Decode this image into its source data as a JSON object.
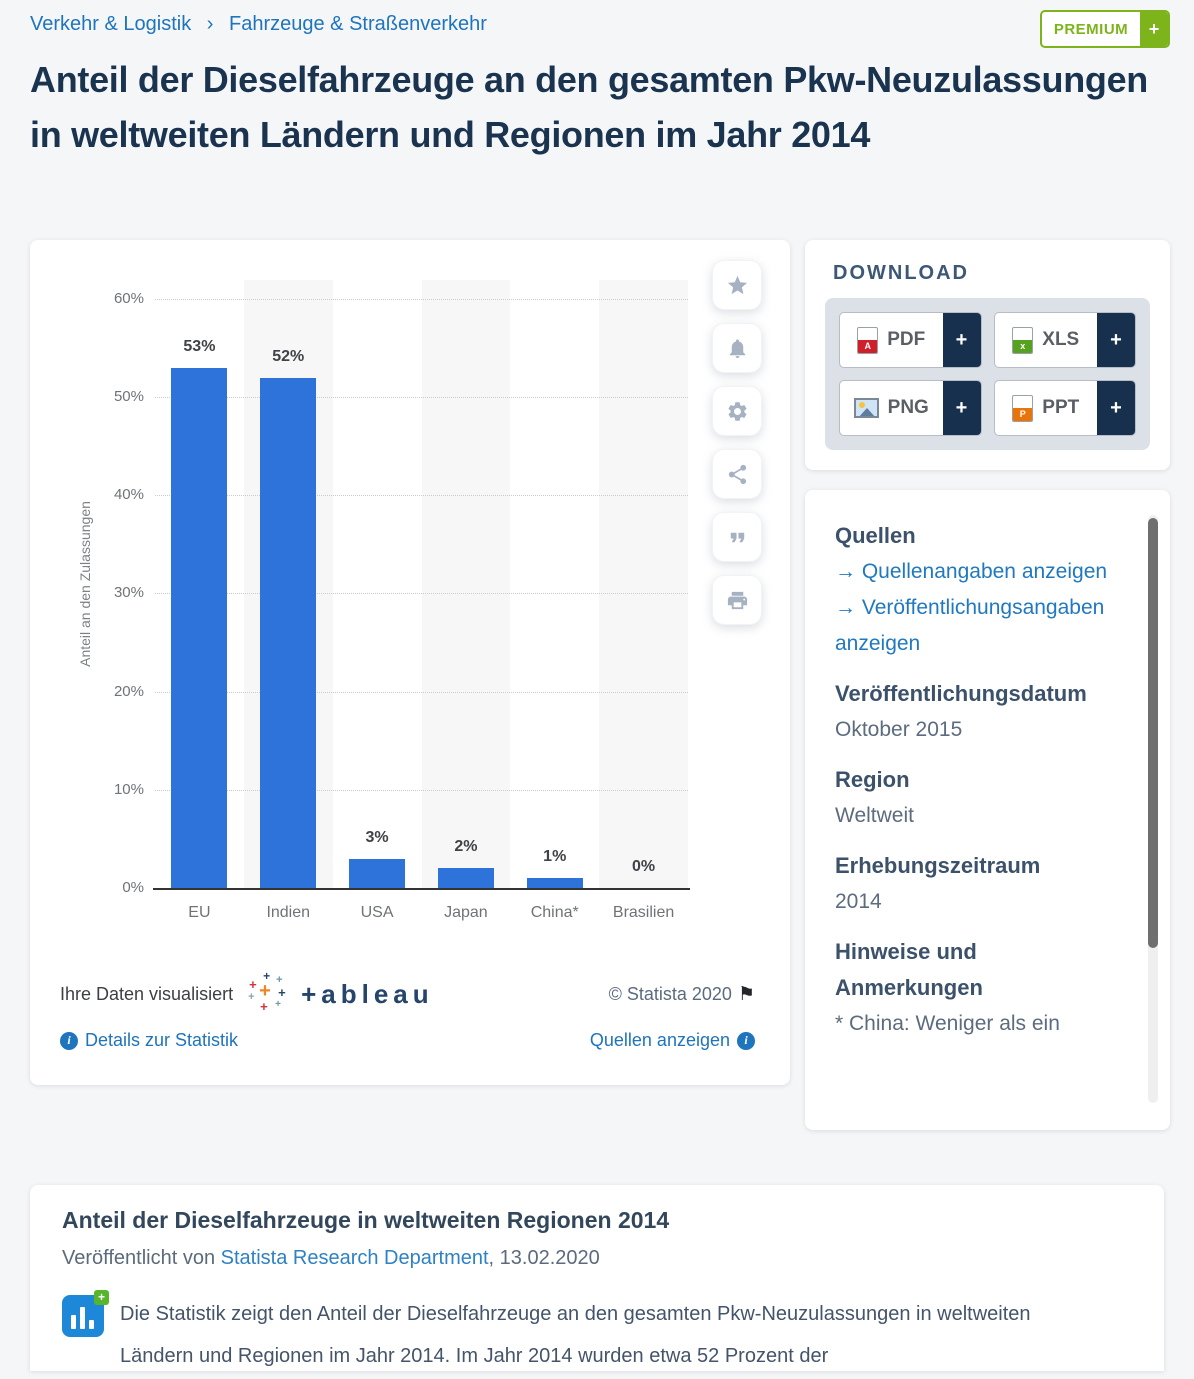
{
  "breadcrumb": {
    "items": [
      "Verkehr & Logistik",
      "Fahrzeuge & Straßenverkehr"
    ],
    "separator": "›"
  },
  "premium": {
    "label": "PREMIUM",
    "plus": "+"
  },
  "page_title": "Anteil der Dieselfahrzeuge an den gesamten Pkw-Neuzulassungen in weltweiten Ländern und Regionen im Jahr 2014",
  "chart_data": {
    "type": "bar",
    "categories": [
      "EU",
      "Indien",
      "USA",
      "Japan",
      "China*",
      "Brasilien"
    ],
    "values": [
      53,
      52,
      3,
      2,
      1,
      0
    ],
    "value_labels": [
      "53%",
      "52%",
      "3%",
      "2%",
      "1%",
      "0%"
    ],
    "title": "",
    "xlabel": "",
    "ylabel": "Anteil an den Zulassungen",
    "ylim": [
      0,
      60
    ],
    "yticks": [
      0,
      10,
      20,
      30,
      40,
      50,
      60
    ],
    "ytick_labels": [
      "0%",
      "10%",
      "20%",
      "30%",
      "40%",
      "50%",
      "60%"
    ],
    "grid": "horizontal-dotted",
    "legend": "none",
    "bar_color": "#2e73da",
    "stripe_color": "#f7f7f8",
    "striped_columns": [
      1,
      3,
      5
    ]
  },
  "chart_actions": {
    "favorite": "star-icon",
    "alert": "bell-icon",
    "settings": "gear-icon",
    "share": "share-icon",
    "cite": "quote-icon",
    "print": "printer-icon"
  },
  "chart_footer": {
    "visualized_by": "Ihre Daten visualisiert",
    "tableau_logo_text": "+ableau",
    "copyright": "© Statista 2020",
    "flag": "⚑",
    "details_link": "Details zur Statistik",
    "sources_link": "Quellen anzeigen"
  },
  "download": {
    "heading": "DOWNLOAD",
    "plus": "+",
    "buttons": [
      {
        "label": "PDF"
      },
      {
        "label": "XLS"
      },
      {
        "label": "PNG"
      },
      {
        "label": "PPT"
      }
    ]
  },
  "sources_panel": {
    "heading": "Quellen",
    "links": [
      {
        "arrow": "→",
        "label": "Quellenangaben anzeigen"
      },
      {
        "arrow": "→",
        "label": "Veröffentlichungsangaben anzeigen"
      }
    ],
    "sections": [
      {
        "heading": "Veröffentlichungsdatum",
        "value": "Oktober 2015"
      },
      {
        "heading": "Region",
        "value": "Weltweit"
      },
      {
        "heading": "Erhebungszeitraum",
        "value": "2014"
      },
      {
        "heading": "Hinweise und Anmerkungen",
        "value": "* China: Weniger als ein"
      }
    ]
  },
  "article": {
    "heading": "Anteil der Dieselfahrzeuge in weltweiten Regionen 2014",
    "published_prefix": "Veröffentlicht von ",
    "author_link": "Statista Research Department",
    "published_suffix": ", 13.02.2020",
    "body": "Die Statistik zeigt den Anteil der Dieselfahrzeuge an den gesamten Pkw-Neuzulassungen in weltweiten Ländern und Regionen im Jahr 2014. Im Jahr 2014 wurden etwa 52 Prozent der",
    "stat_icon_plus": "+"
  },
  "colors": {
    "link_blue": "#1e74bd",
    "title_navy": "#1a3450",
    "bar_blue": "#2e73da",
    "premium_green": "#7db41c",
    "download_navy": "#16304d"
  }
}
